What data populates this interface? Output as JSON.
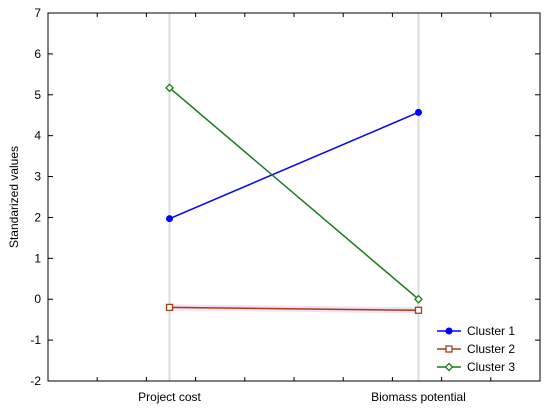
{
  "chart_data": {
    "type": "line",
    "title": "",
    "xlabel": "",
    "ylabel": "Standarized values",
    "categories": [
      "Project cost",
      "Biomass potential"
    ],
    "ylim": [
      -2,
      7
    ],
    "yticks": [
      "-2",
      "-1",
      "0",
      "1",
      "2",
      "3",
      "4",
      "5",
      "6",
      "7"
    ],
    "grid": "vertical",
    "legend_position": "bottom-right",
    "series": [
      {
        "name": "Cluster 1",
        "values": [
          1.97,
          4.57
        ],
        "color": "#0000ff",
        "marker": "circle"
      },
      {
        "name": "Cluster 2",
        "values": [
          -0.2,
          -0.27
        ],
        "color": "#a0401a",
        "marker": "square"
      },
      {
        "name": "Cluster 3",
        "values": [
          5.17,
          0.0
        ],
        "color": "#1a7a1a",
        "marker": "diamond"
      }
    ]
  }
}
